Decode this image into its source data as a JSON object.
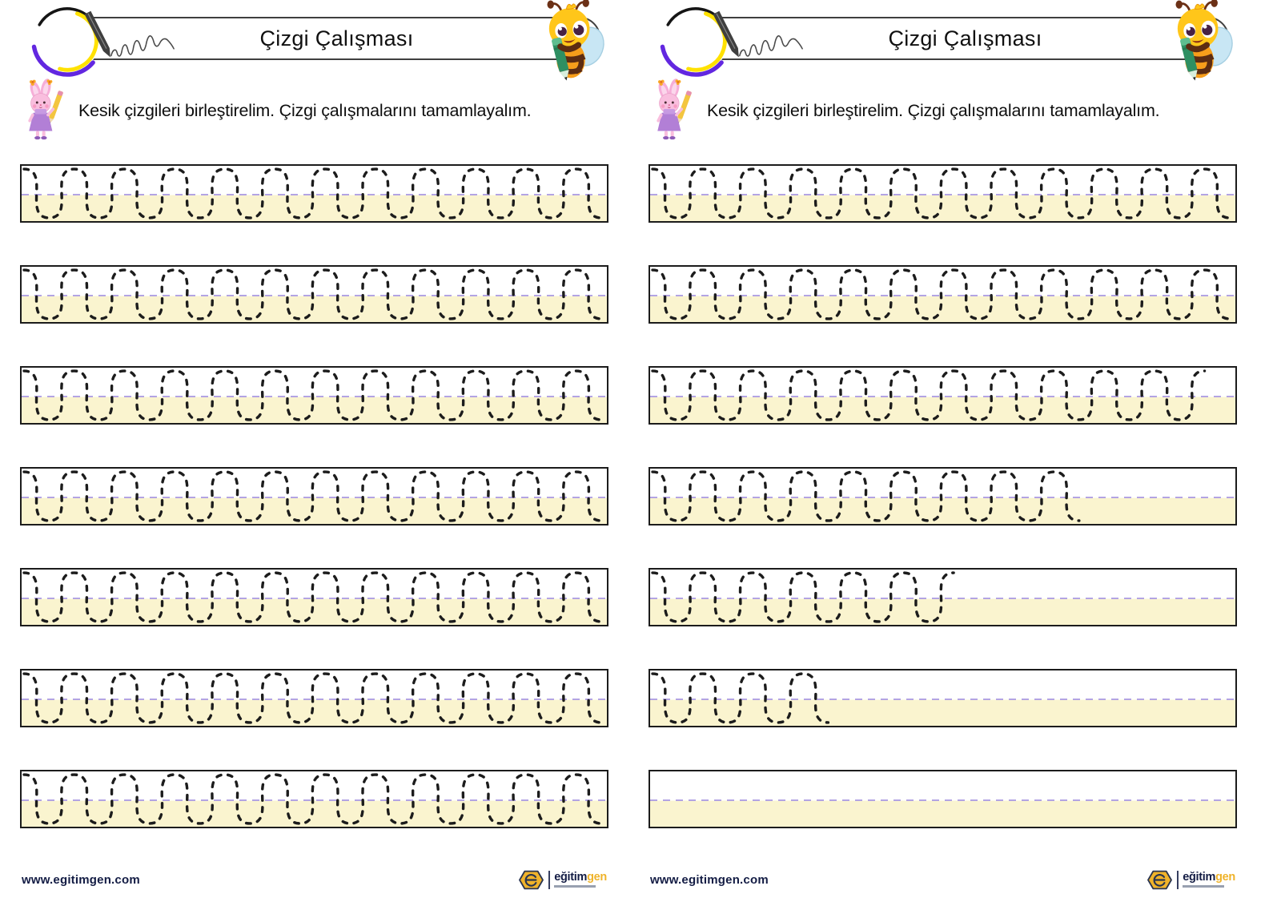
{
  "header": {
    "title": "Çizgi Çalışması"
  },
  "instruction": {
    "text": "Kesik çizgileri birleştirelim. Çizgi çalışmalarını tamamlayalım."
  },
  "footer": {
    "website": "www.egitimgen.com",
    "logo_primary": "eğitim",
    "logo_accent": "gen"
  },
  "colors": {
    "band_fill": "#FAF4CF",
    "midline": "#B3A4E3",
    "wave_stroke": "#1C1C1C",
    "banner_border": "#3F3F3F",
    "navy": "#131C44",
    "logo_yellow": "#EFB32A",
    "icon_yellow": "#FFE100",
    "icon_purple": "#6227E0"
  },
  "worksheet": {
    "bands_per_page": 7,
    "left_rows": [
      1,
      1,
      1,
      1,
      1,
      1,
      1
    ],
    "right_rows": [
      1,
      1,
      0.944,
      0.732,
      0.531,
      0.315,
      0
    ]
  }
}
